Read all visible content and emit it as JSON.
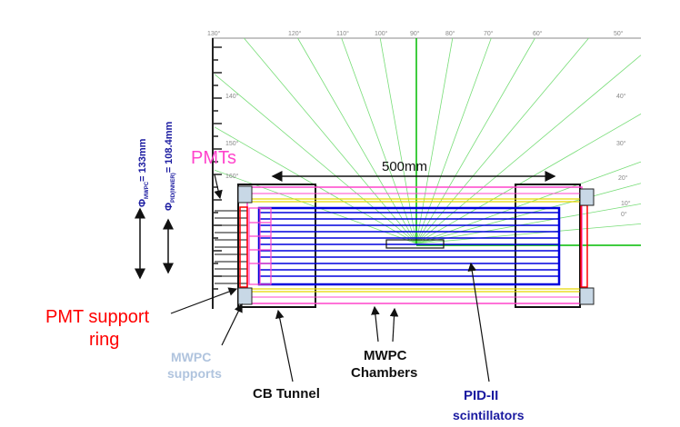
{
  "angle_ticks": [
    "130°",
    "120°",
    "110°",
    "100°",
    "90°",
    "80°",
    "70°",
    "60°",
    "50°",
    "140°",
    "40°",
    "150°",
    "30°",
    "160°",
    "20°",
    "10°",
    "0°"
  ],
  "dimension": "500mm",
  "phi_mwpc": "Φ",
  "phi_mwpc_sub": "MWPC",
  "phi_mwpc_val": "= 133mm",
  "phi_pid": "Φ",
  "phi_pid_sub": "PID(INNER)",
  "phi_pid_val": "= 108.4mm",
  "labels": {
    "pmts": "PMTs",
    "pmt_support_line1": "PMT support",
    "pmt_support_line2": "ring",
    "mwpc_supports_line1": "MWPC",
    "mwpc_supports_line2": "supports",
    "cb_tunnel": "CB Tunnel",
    "mwpc_chambers_line1": "MWPC",
    "mwpc_chambers_line2": "Chambers",
    "pid_line1": "PID-II",
    "pid_line2": "scintillators"
  },
  "colors": {
    "pmts": "#ff44cc",
    "pmt_support": "#ff0000",
    "mwpc_supports": "#b0c4de",
    "pid": "#1a1aa0",
    "bars": "#0000dd",
    "rays": "#66dd66"
  }
}
